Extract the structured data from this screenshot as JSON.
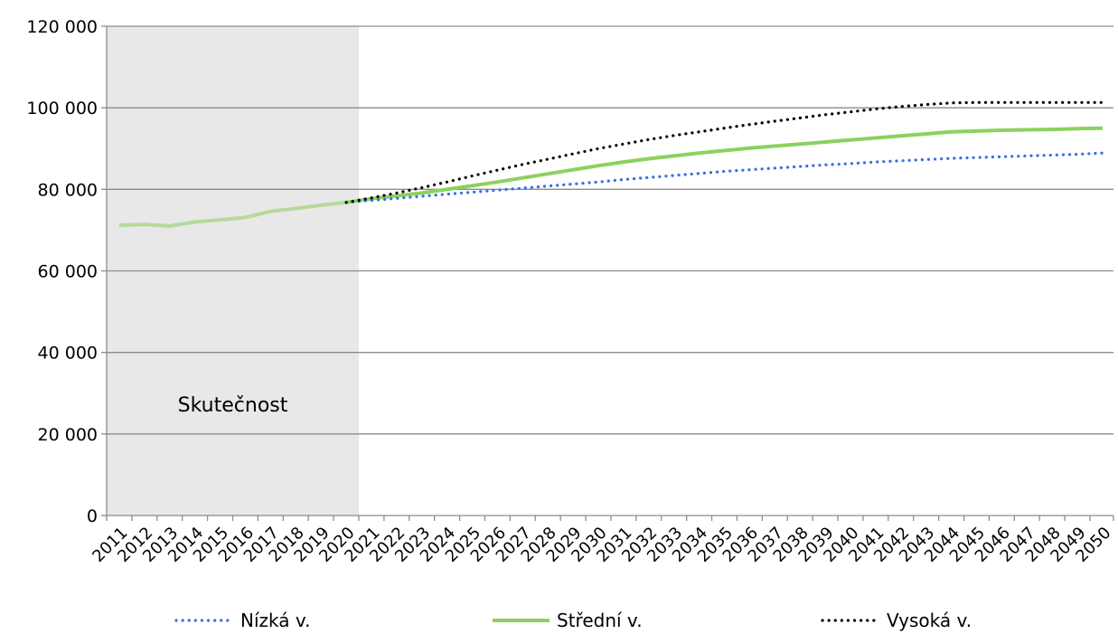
{
  "chart_data": {
    "type": "line",
    "title": "",
    "xlabel": "",
    "ylabel": "",
    "ylim": [
      0,
      120000
    ],
    "yticks": [
      0,
      20000,
      40000,
      60000,
      80000,
      100000,
      120000
    ],
    "ytick_labels": [
      "0",
      "20 000",
      "40 000",
      "60 000",
      "80 000",
      "100 000",
      "120 000"
    ],
    "x": [
      2011,
      2012,
      2013,
      2014,
      2015,
      2016,
      2017,
      2018,
      2019,
      2020,
      2021,
      2022,
      2023,
      2024,
      2025,
      2026,
      2027,
      2028,
      2029,
      2030,
      2031,
      2032,
      2033,
      2034,
      2035,
      2036,
      2037,
      2038,
      2039,
      2040,
      2041,
      2042,
      2043,
      2044,
      2045,
      2046,
      2047,
      2048,
      2049,
      2050
    ],
    "grid": "horizontal",
    "legend_position": "bottom",
    "shaded_region": {
      "from": 2011,
      "to": 2020,
      "label": "Skutečnost",
      "color": "#e8e8e8"
    },
    "history": {
      "x": [
        2011,
        2012,
        2013,
        2014,
        2015,
        2016,
        2017,
        2018,
        2019,
        2020
      ],
      "values": [
        71200,
        71400,
        71000,
        72000,
        72500,
        73100,
        74600,
        75300,
        76100,
        76800
      ],
      "color": "#b5d99c"
    },
    "series": [
      {
        "name": "Nízká v.",
        "color": "#3c6fdf",
        "style": "dotted",
        "x": [
          2020,
          2021,
          2022,
          2023,
          2024,
          2025,
          2026,
          2027,
          2028,
          2029,
          2030,
          2031,
          2032,
          2033,
          2034,
          2035,
          2036,
          2037,
          2038,
          2039,
          2040,
          2041,
          2042,
          2043,
          2044,
          2045,
          2046,
          2047,
          2048,
          2049,
          2050
        ],
        "values": [
          76800,
          77300,
          77800,
          78300,
          78800,
          79300,
          79800,
          80300,
          80800,
          81300,
          81800,
          82400,
          82900,
          83400,
          83900,
          84400,
          84800,
          85200,
          85600,
          86000,
          86300,
          86700,
          87000,
          87300,
          87600,
          87800,
          88000,
          88200,
          88400,
          88600,
          88900
        ]
      },
      {
        "name": "Střední v.",
        "color": "#8cd15f",
        "style": "solid",
        "x": [
          2020,
          2021,
          2022,
          2023,
          2024,
          2025,
          2026,
          2027,
          2028,
          2029,
          2030,
          2031,
          2032,
          2033,
          2034,
          2035,
          2036,
          2037,
          2038,
          2039,
          2040,
          2041,
          2042,
          2043,
          2044,
          2045,
          2046,
          2047,
          2048,
          2049,
          2050
        ],
        "values": [
          76800,
          77700,
          78400,
          79100,
          80000,
          80900,
          81800,
          82800,
          83800,
          84800,
          85800,
          86700,
          87500,
          88200,
          88900,
          89500,
          90100,
          90600,
          91100,
          91600,
          92100,
          92600,
          93100,
          93600,
          94100,
          94300,
          94500,
          94600,
          94700,
          94900,
          95000
        ]
      },
      {
        "name": "Vysoká v.",
        "color": "#000000",
        "style": "dotted",
        "x": [
          2020,
          2021,
          2022,
          2023,
          2024,
          2025,
          2026,
          2027,
          2028,
          2029,
          2030,
          2031,
          2032,
          2033,
          2034,
          2035,
          2036,
          2037,
          2038,
          2039,
          2040,
          2041,
          2042,
          2043,
          2044,
          2045,
          2046,
          2047,
          2048,
          2049,
          2050
        ],
        "values": [
          76800,
          77900,
          79100,
          80400,
          81800,
          83300,
          84700,
          86100,
          87400,
          88700,
          90000,
          91100,
          92200,
          93200,
          94100,
          95000,
          95900,
          96700,
          97500,
          98300,
          99000,
          99700,
          100300,
          100800,
          101200,
          101300,
          101300,
          101300,
          101300,
          101300,
          101300
        ]
      }
    ]
  }
}
